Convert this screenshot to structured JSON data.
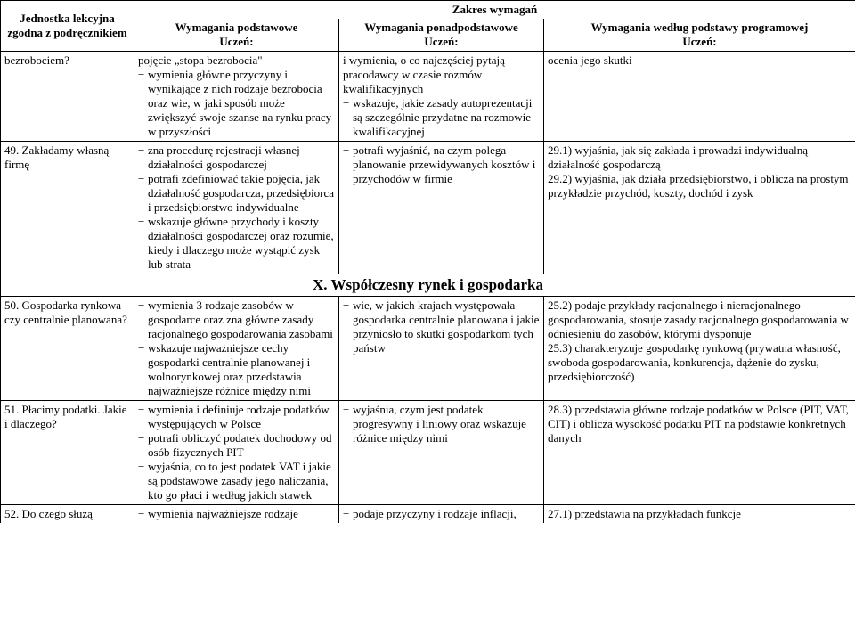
{
  "header": {
    "col1_line1": "Jednostka lekcyjna",
    "col1_line2": "zgodna z podręcznikiem",
    "span_title": "Zakres wymagań",
    "col2_line1": "Wymagania podstawowe",
    "col2_line2": "Uczeń:",
    "col3_line1": "Wymagania ponadpodstawowe",
    "col3_line2": "Uczeń:",
    "col4_line1": "Wymagania według podstawy programowej",
    "col4_line2": "Uczeń:"
  },
  "sectionX": "X. Współczesny rynek i gospodarka",
  "rows": {
    "r1": {
      "unit": "bezrobociem?",
      "basic": "pojęcie „stopa bezrobocia\"",
      "basic_items": [
        "wymienia główne przyczyny i wynikające z nich rodzaje bezrobocia oraz wie, w jaki sposób może zwiększyć swoje szanse na rynku pracy w przyszłości"
      ],
      "extra_pre": "i wymienia, o co najczęściej pytają pracodawcy w czasie rozmów kwalifikacyjnych",
      "extra_items": [
        "wskazuje, jakie zasady autoprezentacji są szczególnie przydatne na rozmowie kwalifikacyjnej"
      ],
      "prog": "ocenia jego skutki"
    },
    "r2": {
      "unit": "49. Zakładamy własną firmę",
      "basic_items": [
        "zna procedurę rejestracji własnej działalności gospodarczej",
        "potrafi zdefiniować takie pojęcia, jak działalność gospodarcza, przedsiębiorca i przedsiębiorstwo indywidualne",
        "wskazuje główne przychody i koszty działalności gospodarczej oraz rozumie, kiedy i dlaczego może wystąpić zysk lub strata"
      ],
      "extra_items": [
        "potrafi wyjaśnić, na czym polega planowanie przewidywanych kosztów i przychodów w firmie"
      ],
      "prog_p1": "29.1) wyjaśnia, jak się zakłada i prowadzi indywidualną działalność gospodarczą",
      "prog_p2": "29.2) wyjaśnia, jak działa przedsiębiorstwo, i oblicza na prostym przykładzie przychód, koszty, dochód i zysk"
    },
    "r3": {
      "unit": "50. Gospodarka rynkowa czy centralnie planowana?",
      "basic_items": [
        "wymienia 3 rodzaje zasobów w gospodarce oraz zna główne zasady racjonalnego gospodarowania zasobami",
        "wskazuje najważniejsze cechy gospodarki centralnie planowanej i wolnorynkowej oraz przedstawia najważniejsze różnice między nimi"
      ],
      "extra_items": [
        "wie, w jakich krajach występowała gospodarka centralnie planowana i jakie przyniosło to skutki gospodarkom tych państw"
      ],
      "prog_p1": "25.2) podaje przykłady racjonalnego i nieracjonalnego gospodarowania, stosuje zasady racjonalnego gospodarowania w odniesieniu do zasobów, którymi dysponuje",
      "prog_p2": "25.3) charakteryzuje gospodarkę rynkową (prywatna własność, swoboda gospodarowania, konkurencja, dążenie do zysku, przedsiębiorczość)"
    },
    "r4": {
      "unit": "51. Płacimy podatki. Jakie i dlaczego?",
      "basic_items": [
        "wymienia i definiuje rodzaje podatków występujących w Polsce",
        "potrafi obliczyć podatek dochodowy od osób fizycznych PIT",
        "wyjaśnia, co to jest podatek VAT i jakie są podstawowe zasady jego naliczania, kto go płaci i według jakich stawek"
      ],
      "extra_items": [
        "wyjaśnia, czym jest podatek progresywny i liniowy oraz wskazuje różnice między nimi"
      ],
      "prog": "28.3) przedstawia główne rodzaje podatków w Polsce (PIT, VAT, CIT) i oblicza wysokość podatku PIT na podstawie konkretnych danych"
    },
    "r5": {
      "unit": "52. Do czego służą",
      "basic_items": [
        "wymienia najważniejsze rodzaje"
      ],
      "extra_items": [
        "podaje przyczyny i rodzaje inflacji,"
      ],
      "prog": "27.1) przedstawia na przykładach funkcje"
    }
  }
}
